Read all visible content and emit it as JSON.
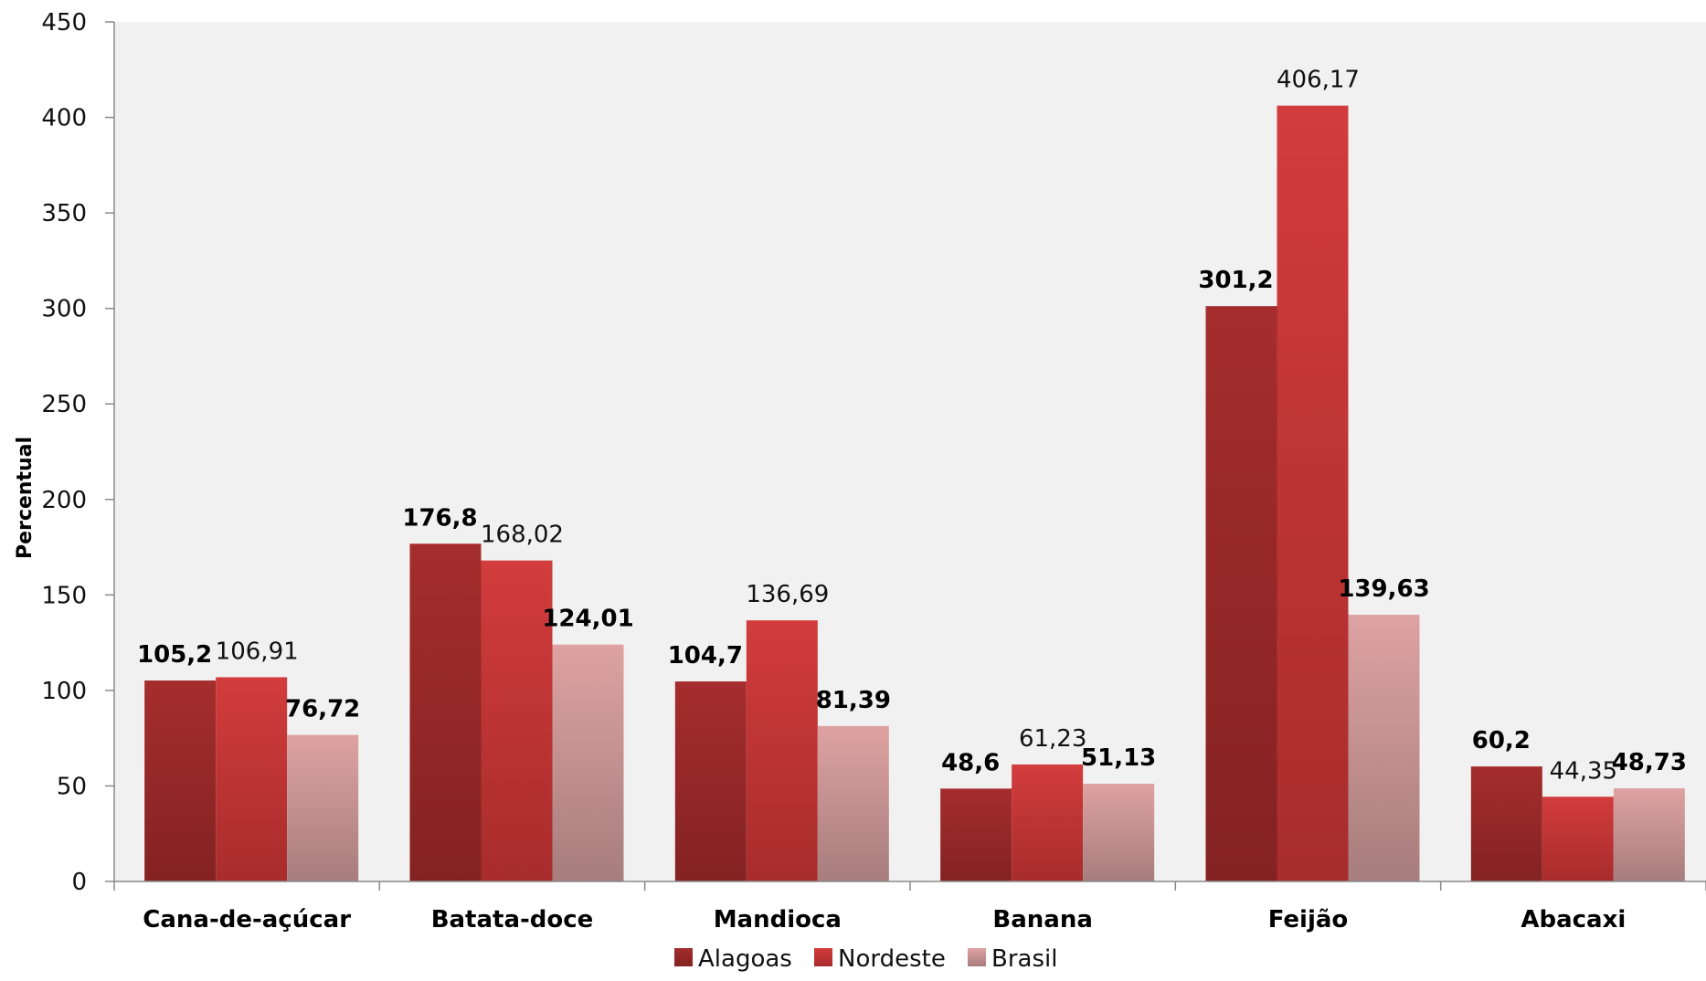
{
  "chart_data": {
    "type": "bar",
    "ylabel": "Percentual",
    "ylim": [
      0,
      450
    ],
    "yticks": [
      0,
      50,
      100,
      150,
      200,
      250,
      300,
      350,
      400,
      450
    ],
    "grid": false,
    "legend_position": "bottom",
    "categories": [
      "Cana-de-açúcar",
      "Batata-doce",
      "Mandioca",
      "Banana",
      "Feijão",
      "Abacaxi"
    ],
    "series": [
      {
        "name": "Alagoas",
        "color": "#a52a2a",
        "values": [
          105.2,
          176.8,
          104.7,
          48.6,
          301.2,
          60.2
        ],
        "labels": [
          "105,2",
          "176,8",
          "104,7",
          "48,6",
          "301,2",
          "60,2"
        ]
      },
      {
        "name": "Nordeste",
        "color": "#d03a3a",
        "values": [
          106.91,
          168.02,
          136.69,
          61.23,
          406.17,
          44.35
        ],
        "labels": [
          "106,91",
          "168,02",
          "136,69",
          "61,23",
          "406,17",
          "44,35"
        ]
      },
      {
        "name": "Brasil",
        "color": "#dc9b9b",
        "values": [
          76.72,
          124.01,
          81.39,
          51.13,
          139.63,
          48.73
        ],
        "labels": [
          "76,72",
          "124,01",
          "81,39",
          "51,13",
          "139,63",
          "48,73"
        ]
      }
    ]
  }
}
